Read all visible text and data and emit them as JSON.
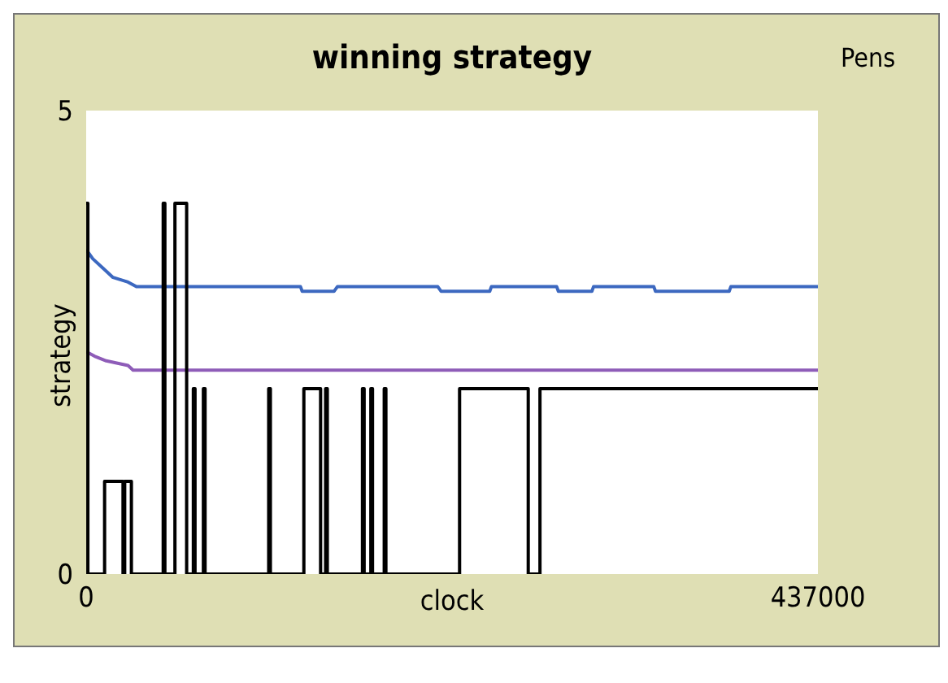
{
  "chart_data": {
    "type": "line",
    "title": "winning strategy",
    "xlabel": "clock",
    "ylabel": "strategy",
    "annotations": [
      "Pens"
    ],
    "xlim": [
      0,
      437000
    ],
    "xticks": [
      0,
      437000
    ],
    "ylim": [
      0,
      5
    ],
    "yticks": [
      0,
      5
    ],
    "series": [
      {
        "color": "#3c68c0",
        "x": [
          0,
          4000,
          10000,
          16000,
          25000,
          30000,
          128000,
          129000,
          148000,
          150000,
          210000,
          212000,
          241000,
          242000,
          281000,
          282000,
          302000,
          303000,
          339000,
          340000,
          384000,
          385000,
          437000
        ],
        "values": [
          3.5,
          3.4,
          3.3,
          3.2,
          3.15,
          3.1,
          3.1,
          3.05,
          3.05,
          3.1,
          3.1,
          3.05,
          3.05,
          3.1,
          3.1,
          3.05,
          3.05,
          3.1,
          3.1,
          3.05,
          3.05,
          3.1,
          3.1
        ]
      },
      {
        "color": "#8e5cb8",
        "x": [
          0,
          5000,
          12000,
          25000,
          28000,
          437000
        ],
        "values": [
          2.4,
          2.35,
          2.3,
          2.25,
          2.2,
          2.2
        ]
      },
      {
        "color": "#000000",
        "x": [
          0,
          1000,
          1000,
          11000,
          11000,
          22000,
          22000,
          23000,
          23000,
          27000,
          27000,
          46000,
          46000,
          47000,
          47000,
          53000,
          53000,
          60000,
          60000,
          64000,
          64000,
          65000,
          65000,
          70000,
          70000,
          71000,
          71000,
          109000,
          109000,
          110000,
          110000,
          130000,
          130000,
          140000,
          140000,
          143000,
          143000,
          144000,
          144000,
          165000,
          165000,
          166000,
          166000,
          170000,
          170000,
          171000,
          171000,
          178000,
          178000,
          179000,
          179000,
          223000,
          223000,
          264000,
          264000,
          271000,
          271000,
          437000
        ],
        "values": [
          4,
          4,
          0,
          0,
          1,
          1,
          0,
          0,
          1,
          1,
          0,
          0,
          4,
          4,
          0,
          0,
          4,
          4,
          0,
          0,
          2,
          2,
          0,
          0,
          2,
          2,
          0,
          0,
          2,
          2,
          0,
          0,
          2,
          2,
          0,
          0,
          2,
          2,
          0,
          0,
          2,
          2,
          0,
          0,
          2,
          2,
          0,
          0,
          2,
          2,
          0,
          0,
          2,
          2,
          0,
          0,
          2,
          2
        ]
      }
    ]
  }
}
